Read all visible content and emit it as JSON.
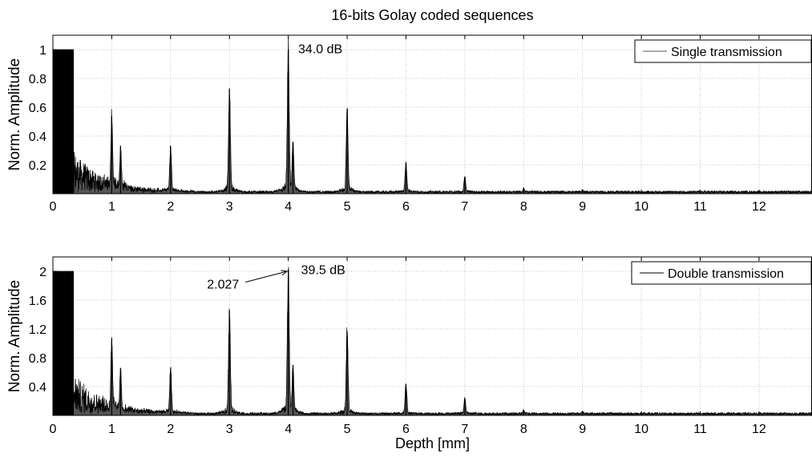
{
  "chart_data": [
    {
      "type": "line",
      "title": "16-bits Golay coded sequences",
      "xlabel": "",
      "ylabel": "Norm. Amplitude",
      "xlim": [
        0,
        12.9
      ],
      "ylim": [
        0,
        1.1
      ],
      "xticks": [
        "0",
        "1",
        "2",
        "3",
        "4",
        "5",
        "6",
        "7",
        "8",
        "9",
        "10",
        "11",
        "12"
      ],
      "yticks": [
        "0.2",
        "0.4",
        "0.6",
        "0.8",
        "1"
      ],
      "grid": true,
      "legend": {
        "position": "top-right",
        "entries": [
          "Single transmission"
        ]
      },
      "series": [
        {
          "name": "Single transmission",
          "saturated_block": {
            "x": [
              0,
              0.35
            ],
            "y": 1.0
          },
          "peaks": [
            {
              "x": 1.0,
              "y": 0.54
            },
            {
              "x": 1.15,
              "y": 0.33
            },
            {
              "x": 2.0,
              "y": 0.33
            },
            {
              "x": 3.0,
              "y": 0.73
            },
            {
              "x": 4.0,
              "y": 1.0
            },
            {
              "x": 4.08,
              "y": 0.35
            },
            {
              "x": 5.0,
              "y": 0.59
            },
            {
              "x": 6.0,
              "y": 0.22
            },
            {
              "x": 7.0,
              "y": 0.12
            },
            {
              "x": 8.0,
              "y": 0.04
            },
            {
              "x": 9.0,
              "y": 0.03
            }
          ],
          "noise_floor": 0.02
        }
      ],
      "annotations": [
        {
          "text": "34.0 dB",
          "x": 4.1,
          "y": 1.02
        }
      ]
    },
    {
      "type": "line",
      "title": "",
      "xlabel": "Depth [mm]",
      "ylabel": "Norm. Amplitude",
      "xlim": [
        0,
        12.9
      ],
      "ylim": [
        0,
        2.2
      ],
      "xticks": [
        "0",
        "1",
        "2",
        "3",
        "4",
        "5",
        "6",
        "7",
        "8",
        "9",
        "10",
        "11",
        "12"
      ],
      "yticks": [
        "0.4",
        "0.8",
        "1.2",
        "1.6",
        "2"
      ],
      "grid": true,
      "legend": {
        "position": "top-right",
        "entries": [
          "Double transmission"
        ]
      },
      "series": [
        {
          "name": "Double transmission",
          "saturated_block": {
            "x": [
              0,
              0.35
            ],
            "y": 2.0
          },
          "peaks": [
            {
              "x": 1.0,
              "y": 1.08
            },
            {
              "x": 1.15,
              "y": 0.66
            },
            {
              "x": 2.0,
              "y": 0.66
            },
            {
              "x": 3.0,
              "y": 1.46
            },
            {
              "x": 4.0,
              "y": 2.027
            },
            {
              "x": 4.08,
              "y": 0.7
            },
            {
              "x": 5.0,
              "y": 1.17
            },
            {
              "x": 6.0,
              "y": 0.44
            },
            {
              "x": 7.0,
              "y": 0.24
            },
            {
              "x": 8.0,
              "y": 0.08
            },
            {
              "x": 9.0,
              "y": 0.06
            }
          ],
          "noise_floor": 0.04
        }
      ],
      "annotations": [
        {
          "text": "39.5 dB",
          "x": 4.15,
          "y": 2.05
        },
        {
          "text": "2.027",
          "x": 3.3,
          "y": 1.85,
          "arrow_to": [
            3.98,
            2.0
          ]
        }
      ]
    }
  ]
}
